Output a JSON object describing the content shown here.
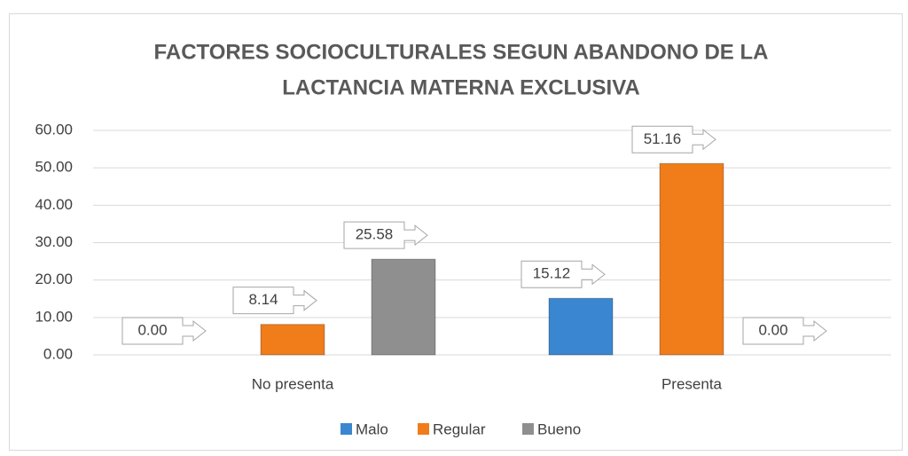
{
  "chart_data": {
    "type": "bar",
    "title": [
      "FACTORES SOCIOCULTURALES SEGUN ABANDONO DE LA",
      "LACTANCIA MATERNA EXCLUSIVA"
    ],
    "categories": [
      "No presenta",
      "Presenta"
    ],
    "series": [
      {
        "name": "Malo",
        "color": "#3a86d0",
        "values": [
          0,
          15.12
        ],
        "value_labels": [
          "0.00",
          "15.12"
        ]
      },
      {
        "name": "Regular",
        "color": "#f07c1a",
        "values": [
          8.14,
          51.16
        ],
        "value_labels": [
          "8.14",
          "51.16"
        ]
      },
      {
        "name": "Bueno",
        "color": "#8f8f8f",
        "values": [
          25.58,
          0
        ],
        "value_labels": [
          "25.58",
          "0.00"
        ]
      }
    ],
    "ylim": [
      0,
      60
    ],
    "yticks": [
      {
        "value": 0,
        "label": "0.00"
      },
      {
        "value": 10,
        "label": "10.00"
      },
      {
        "value": 20,
        "label": "20.00"
      },
      {
        "value": 30,
        "label": "30.00"
      },
      {
        "value": 40,
        "label": "40.00"
      },
      {
        "value": 50,
        "label": "50.00"
      },
      {
        "value": 60,
        "label": "60.00"
      }
    ],
    "grid": true,
    "legend": "bottom"
  }
}
